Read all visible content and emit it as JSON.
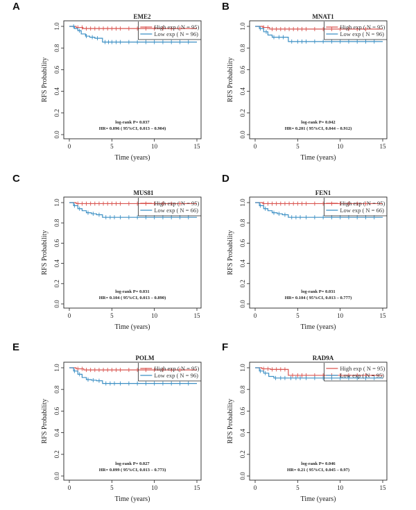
{
  "colors": {
    "high": "#d9534f",
    "low": "#3b8fc4",
    "axis": "#222222"
  },
  "chart_data": [
    {
      "type": "line",
      "panel": "A",
      "title": "EME2",
      "xlabel": "Time (years)",
      "ylabel": "RFS Probability",
      "xlim": [
        0,
        15
      ],
      "ylim": [
        0,
        1
      ],
      "xticks": [
        0,
        5,
        10,
        15
      ],
      "yticks": [
        0.0,
        0.2,
        0.4,
        0.6,
        0.8,
        1.0
      ],
      "xtick_labels": [
        "0",
        "5",
        "10",
        "15"
      ],
      "ytick_labels": [
        "0.0",
        "0.2",
        "0.4",
        "0.6",
        "0.8",
        "1.0"
      ],
      "series": [
        {
          "name": "High exp ( N = 95)",
          "x": [
            0,
            0.8,
            1.6,
            15
          ],
          "y": [
            1.0,
            0.99,
            0.98,
            0.98
          ],
          "censor_x": [
            1,
            1.5,
            2,
            2.5,
            3,
            3.5,
            4,
            4.5,
            5,
            5.5,
            6,
            7,
            8,
            9,
            10,
            11,
            12,
            13
          ]
        },
        {
          "name": "Low exp ( N = 96)",
          "x": [
            0,
            0.6,
            1.0,
            1.4,
            1.9,
            2.4,
            3.0,
            3.9,
            15
          ],
          "y": [
            1.0,
            0.98,
            0.96,
            0.93,
            0.91,
            0.9,
            0.89,
            0.855,
            0.855
          ],
          "censor_x": [
            0.5,
            1.2,
            2,
            2.7,
            3.3,
            4.2,
            4.6,
            5,
            5.5,
            6,
            7,
            8,
            9,
            10,
            11,
            12,
            13,
            14
          ]
        }
      ],
      "stats": [
        "log-rank P= 0.037",
        "HR= 0.096 ( 95%CI, 0.013 – 0.904)"
      ]
    },
    {
      "type": "line",
      "panel": "B",
      "title": "MNAT1",
      "xlabel": "Time (years)",
      "ylabel": "RFS Probability",
      "xlim": [
        0,
        15
      ],
      "ylim": [
        0,
        1
      ],
      "xticks": [
        0,
        5,
        10,
        15
      ],
      "yticks": [
        0.0,
        0.2,
        0.4,
        0.6,
        0.8,
        1.0
      ],
      "xtick_labels": [
        "0",
        "5",
        "10",
        "15"
      ],
      "ytick_labels": [
        "0.0",
        "0.2",
        "0.4",
        "0.6",
        "0.8",
        "1.0"
      ],
      "series": [
        {
          "name": "High exp ( N = 95)",
          "x": [
            0,
            0.9,
            1.7,
            15
          ],
          "y": [
            1.0,
            0.99,
            0.975,
            0.975
          ],
          "censor_x": [
            1,
            1.5,
            2,
            2.5,
            3,
            3.5,
            4,
            4.5,
            5,
            5.5,
            6,
            7,
            8,
            9,
            10,
            11,
            12,
            13
          ]
        },
        {
          "name": "Low exp ( N = 96)",
          "x": [
            0,
            0.5,
            1.0,
            1.5,
            2.0,
            3.9,
            15
          ],
          "y": [
            1.0,
            0.98,
            0.95,
            0.92,
            0.9,
            0.86,
            0.86
          ],
          "censor_x": [
            0.6,
            1.3,
            2.2,
            2.8,
            3.3,
            4.3,
            5,
            5.5,
            6,
            7,
            8,
            9,
            10,
            11,
            12,
            13,
            14
          ]
        }
      ],
      "stats": [
        "log-rank P= 0.042",
        "HR= 0.201 ( 95%CI, 0.044 – 0.912)"
      ]
    },
    {
      "type": "line",
      "panel": "C",
      "title": "MUS81",
      "xlabel": "Time (years)",
      "ylabel": "RFS Probability",
      "xlim": [
        0,
        15
      ],
      "ylim": [
        0,
        1
      ],
      "xticks": [
        0,
        5,
        10,
        15
      ],
      "yticks": [
        0.0,
        0.2,
        0.4,
        0.6,
        0.8,
        1.0
      ],
      "xtick_labels": [
        "0",
        "5",
        "10",
        "15"
      ],
      "ytick_labels": [
        "0.0",
        "0.2",
        "0.4",
        "0.6",
        "0.8",
        "1.0"
      ],
      "series": [
        {
          "name": "High exp ( N = 95)",
          "x": [
            0,
            0.8,
            15
          ],
          "y": [
            1.0,
            0.99,
            0.99
          ],
          "censor_x": [
            1,
            1.5,
            2,
            2.5,
            3,
            3.5,
            4,
            4.5,
            5,
            5.5,
            6,
            7,
            8,
            9,
            10,
            11,
            12,
            13
          ]
        },
        {
          "name": "Low exp ( N = 66)",
          "x": [
            0,
            0.5,
            1.0,
            1.5,
            2.0,
            2.6,
            3.2,
            3.9,
            15
          ],
          "y": [
            1.0,
            0.97,
            0.94,
            0.92,
            0.9,
            0.89,
            0.88,
            0.855,
            0.855
          ],
          "censor_x": [
            0.6,
            1.2,
            2.2,
            2.8,
            3.5,
            4.3,
            4.8,
            5.3,
            6,
            7,
            8,
            9,
            10,
            11,
            12,
            13,
            14
          ]
        }
      ],
      "stats": [
        "log-rank P= 0.031",
        "HR= 0.104 ( 95%CI, 0.013 – 0.890)"
      ]
    },
    {
      "type": "line",
      "panel": "D",
      "title": "FEN1",
      "xlabel": "Time (years)",
      "ylabel": "RFS Probability",
      "xlim": [
        0,
        15
      ],
      "ylim": [
        0,
        1
      ],
      "xticks": [
        0,
        5,
        10,
        15
      ],
      "yticks": [
        0.0,
        0.2,
        0.4,
        0.6,
        0.8,
        1.0
      ],
      "xtick_labels": [
        "0",
        "5",
        "10",
        "15"
      ],
      "ytick_labels": [
        "0.0",
        "0.2",
        "0.4",
        "0.6",
        "0.8",
        "1.0"
      ],
      "series": [
        {
          "name": "High exp ( N = 95)",
          "x": [
            0,
            0.9,
            15
          ],
          "y": [
            1.0,
            0.99,
            0.99
          ],
          "censor_x": [
            1,
            1.5,
            2,
            2.5,
            3,
            3.5,
            4,
            4.5,
            5,
            5.5,
            6,
            7,
            8,
            9,
            10,
            11,
            12,
            13
          ]
        },
        {
          "name": "Low exp ( N = 66)",
          "x": [
            0,
            0.5,
            1.0,
            1.5,
            2.0,
            2.6,
            3.2,
            3.9,
            15
          ],
          "y": [
            1.0,
            0.97,
            0.94,
            0.92,
            0.9,
            0.89,
            0.88,
            0.855,
            0.855
          ],
          "censor_x": [
            0.6,
            1.2,
            2.2,
            2.8,
            3.5,
            4.3,
            4.8,
            5.3,
            6,
            7,
            8,
            9,
            10,
            11,
            12,
            13,
            14
          ]
        }
      ],
      "stats": [
        "log-rank P= 0.031",
        "HR= 0.104 ( 95%CI, 0.013 – 0.777)"
      ]
    },
    {
      "type": "line",
      "panel": "E",
      "title": "POLM",
      "xlabel": "Time (years)",
      "ylabel": "RFS Probability",
      "xlim": [
        0,
        15
      ],
      "ylim": [
        0,
        1
      ],
      "xticks": [
        0,
        5,
        10,
        15
      ],
      "yticks": [
        0.0,
        0.2,
        0.4,
        0.6,
        0.8,
        1.0
      ],
      "xtick_labels": [
        "0",
        "5",
        "10",
        "15"
      ],
      "ytick_labels": [
        "0.0",
        "0.2",
        "0.4",
        "0.6",
        "0.8",
        "1.0"
      ],
      "series": [
        {
          "name": "High exp ( N = 95)",
          "x": [
            0,
            0.8,
            1.7,
            15
          ],
          "y": [
            1.0,
            0.99,
            0.98,
            0.98
          ],
          "censor_x": [
            1,
            1.5,
            2,
            2.5,
            3,
            3.5,
            4,
            4.5,
            5,
            5.5,
            6,
            7,
            8,
            9,
            10,
            11,
            12,
            13
          ]
        },
        {
          "name": "Low exp ( N = 96)",
          "x": [
            0,
            0.5,
            1.0,
            1.5,
            2.0,
            2.6,
            3.2,
            3.9,
            15
          ],
          "y": [
            1.0,
            0.97,
            0.94,
            0.91,
            0.89,
            0.885,
            0.88,
            0.855,
            0.855
          ],
          "censor_x": [
            0.6,
            1.2,
            2.2,
            2.8,
            3.5,
            4.3,
            4.8,
            5.3,
            6,
            7,
            8,
            9,
            10,
            11,
            12,
            13,
            14
          ]
        }
      ],
      "stats": [
        "log-rank P= 0.027",
        "HR= 0.099 ( 95%CI, 0.013 – 0.773)"
      ]
    },
    {
      "type": "line",
      "panel": "F",
      "title": "RAD9A",
      "xlabel": "Time (years)",
      "ylabel": "RFS Probability",
      "xlim": [
        0,
        15
      ],
      "ylim": [
        0,
        1
      ],
      "xticks": [
        0,
        5,
        10,
        15
      ],
      "yticks": [
        0.0,
        0.2,
        0.4,
        0.6,
        0.8,
        1.0
      ],
      "xtick_labels": [
        "0",
        "5",
        "10",
        "15"
      ],
      "ytick_labels": [
        "0.0",
        "0.2",
        "0.4",
        "0.6",
        "0.8",
        "1.0"
      ],
      "series": [
        {
          "name": "High exp ( N = 95)",
          "x": [
            0,
            0.8,
            1.8,
            3.9,
            15
          ],
          "y": [
            1.0,
            0.99,
            0.985,
            0.93,
            0.93
          ],
          "censor_x": [
            1,
            1.5,
            2,
            2.5,
            3,
            3.5,
            4.4,
            5,
            5.5,
            6,
            7,
            8,
            9,
            10,
            11,
            12,
            13
          ]
        },
        {
          "name": "Low exp ( N = 95)",
          "x": [
            0,
            0.5,
            1.0,
            1.6,
            2.2,
            15
          ],
          "y": [
            1.0,
            0.97,
            0.95,
            0.92,
            0.905,
            0.905
          ],
          "censor_x": [
            0.6,
            1.2,
            2.4,
            3,
            3.5,
            4.2,
            4.8,
            5.3,
            6,
            7,
            8,
            9,
            10,
            11,
            12,
            13,
            14
          ]
        }
      ],
      "stats": [
        "log-rank P= 0.046",
        "HR= 0.21 ( 95%CI, 0.045 – 0.97)"
      ]
    }
  ]
}
